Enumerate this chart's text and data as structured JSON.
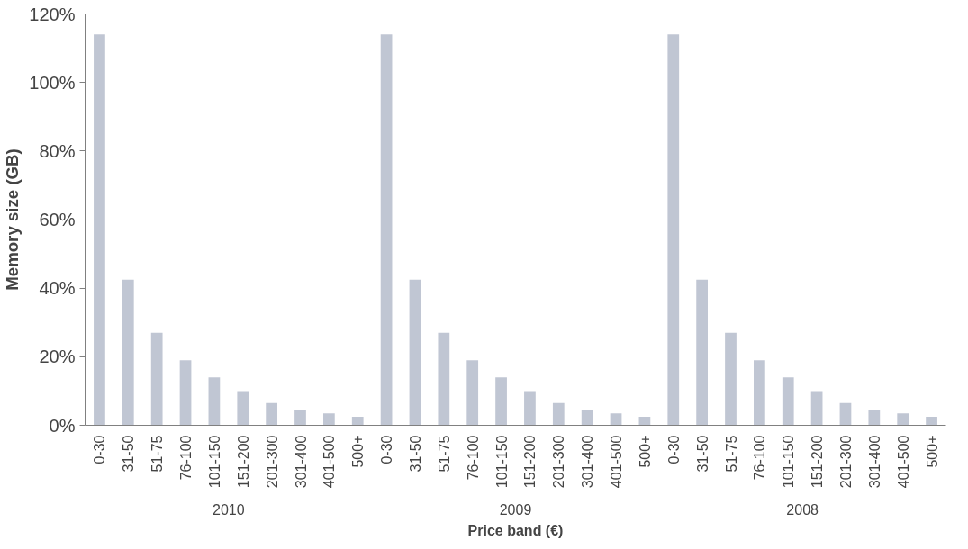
{
  "chart_data": {
    "type": "bar",
    "xlabel": "Price band (€)",
    "ylabel": "Memory size (GB)",
    "categories": [
      "0-30",
      "31-50",
      "51-75",
      "76-100",
      "101-150",
      "151-200",
      "201-300",
      "301-400",
      "401-500",
      "500+",
      "0-30",
      "31-50",
      "51-75",
      "76-100",
      "101-150",
      "151-200",
      "201-300",
      "301-400",
      "401-500",
      "500+",
      "0-30",
      "31-50",
      "51-75",
      "76-100",
      "101-150",
      "151-200",
      "201-300",
      "301-400",
      "401-500",
      "500+"
    ],
    "values": [
      114,
      42.5,
      27,
      19,
      14,
      10,
      6.5,
      4.5,
      3.5,
      2.5,
      114,
      42.5,
      27,
      19,
      14,
      10,
      6.5,
      4.5,
      3.5,
      2.5,
      114,
      42.5,
      27,
      19,
      14,
      10,
      6.5,
      4.5,
      3.5,
      2.5
    ],
    "color": "#c0c6d3",
    "ylim": [
      0,
      120
    ],
    "yticks": [
      {
        "value": 0,
        "label": "0%"
      },
      {
        "value": 20,
        "label": "20%"
      },
      {
        "value": 40,
        "label": "40%"
      },
      {
        "value": 60,
        "label": "60%"
      },
      {
        "value": 80,
        "label": "80%"
      },
      {
        "value": 100,
        "label": "100%"
      },
      {
        "value": 120,
        "label": "120%"
      }
    ],
    "annotations": [
      "2010",
      "2009",
      "2008"
    ]
  }
}
